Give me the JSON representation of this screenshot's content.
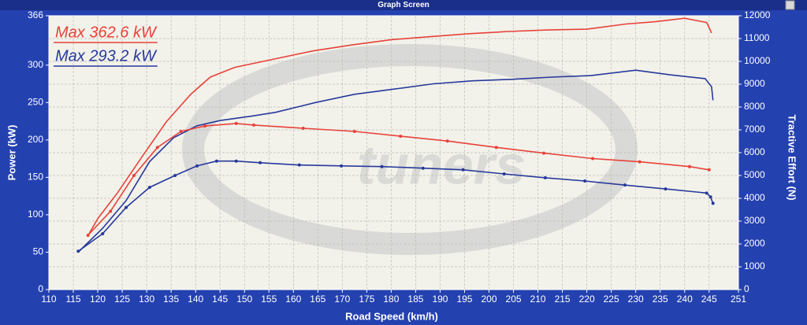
{
  "window_title": "Graph Screen",
  "chart_data": {
    "type": "line",
    "x_label": "Road Speed (km/h)",
    "y_label": "Power (kW)",
    "y2_label": "Tractive Effort (N)",
    "annotations": [
      {
        "text": "Max 362.6 kW",
        "color": "#e8423a"
      },
      {
        "text": "Max 293.2 kW",
        "color": "#27399c"
      }
    ],
    "xlim": [
      110,
      251
    ],
    "xticks": [
      110,
      115,
      120,
      125,
      130,
      135,
      140,
      145,
      150,
      155,
      160,
      165,
      170,
      175,
      180,
      185,
      190,
      195,
      200,
      205,
      210,
      215,
      220,
      225,
      230,
      235,
      240,
      245,
      251
    ],
    "ylim": [
      0,
      366
    ],
    "yticks": [
      0,
      50,
      100,
      150,
      200,
      250,
      300,
      366
    ],
    "y2lim": [
      0,
      12000
    ],
    "y2ticks": [
      0,
      1000,
      2000,
      3000,
      4000,
      5000,
      6000,
      7000,
      8000,
      9000,
      10000,
      11000,
      12000
    ],
    "grid": true,
    "series": [
      {
        "color": "#e8423a",
        "axis": "y",
        "markers": false,
        "x": [
          118,
          120,
          124,
          129,
          134,
          139,
          143,
          148,
          156,
          164,
          172,
          180,
          188,
          196,
          204,
          212,
          220,
          228,
          234,
          240,
          244.5,
          245.5
        ],
        "values": [
          72,
          95,
          129,
          177,
          224,
          261,
          284,
          297,
          308,
          319,
          327,
          334,
          338,
          342,
          345,
          347,
          348,
          355,
          358,
          362.6,
          357,
          343
        ]
      },
      {
        "color": "#27399c",
        "axis": "y",
        "markers": false,
        "x": [
          116,
          121,
          125.8,
          130.6,
          135.5,
          140.3,
          145.1,
          151.6,
          156.4,
          164.5,
          172.5,
          180.6,
          188.6,
          196.7,
          204.7,
          212.8,
          220.8,
          230,
          237,
          244.2,
          245.5,
          245.8
        ],
        "values": [
          50,
          82,
          119,
          171,
          203,
          219,
          226,
          232,
          237,
          250,
          261,
          268,
          275,
          279,
          281,
          284,
          286,
          293.2,
          287,
          282,
          271,
          253
        ]
      },
      {
        "color": "#e8423a",
        "axis": "y2",
        "markers": true,
        "x": [
          118,
          122.6,
          127.4,
          132.2,
          137,
          141.9,
          148.3,
          151.9,
          162,
          172.5,
          181.9,
          191.5,
          201.5,
          211.2,
          221.2,
          230.8,
          241,
          245
        ],
        "values": [
          2380,
          3430,
          5000,
          6230,
          6930,
          7170,
          7280,
          7210,
          7070,
          6930,
          6720,
          6510,
          6230,
          5980,
          5740,
          5600,
          5390,
          5250
        ]
      },
      {
        "color": "#27399c",
        "axis": "y2",
        "markers": true,
        "x": [
          116,
          121,
          125.8,
          130.6,
          135.8,
          140.3,
          144.3,
          148.3,
          153.2,
          161.2,
          169.8,
          178.1,
          186.5,
          194.7,
          203.1,
          211.5,
          219.6,
          227.8,
          236.1,
          244.5,
          245.3,
          245.8
        ],
        "values": [
          1680,
          2450,
          3600,
          4480,
          5000,
          5420,
          5630,
          5630,
          5560,
          5460,
          5420,
          5390,
          5320,
          5250,
          5070,
          4900,
          4760,
          4580,
          4410,
          4230,
          4060,
          3780
        ]
      }
    ]
  }
}
